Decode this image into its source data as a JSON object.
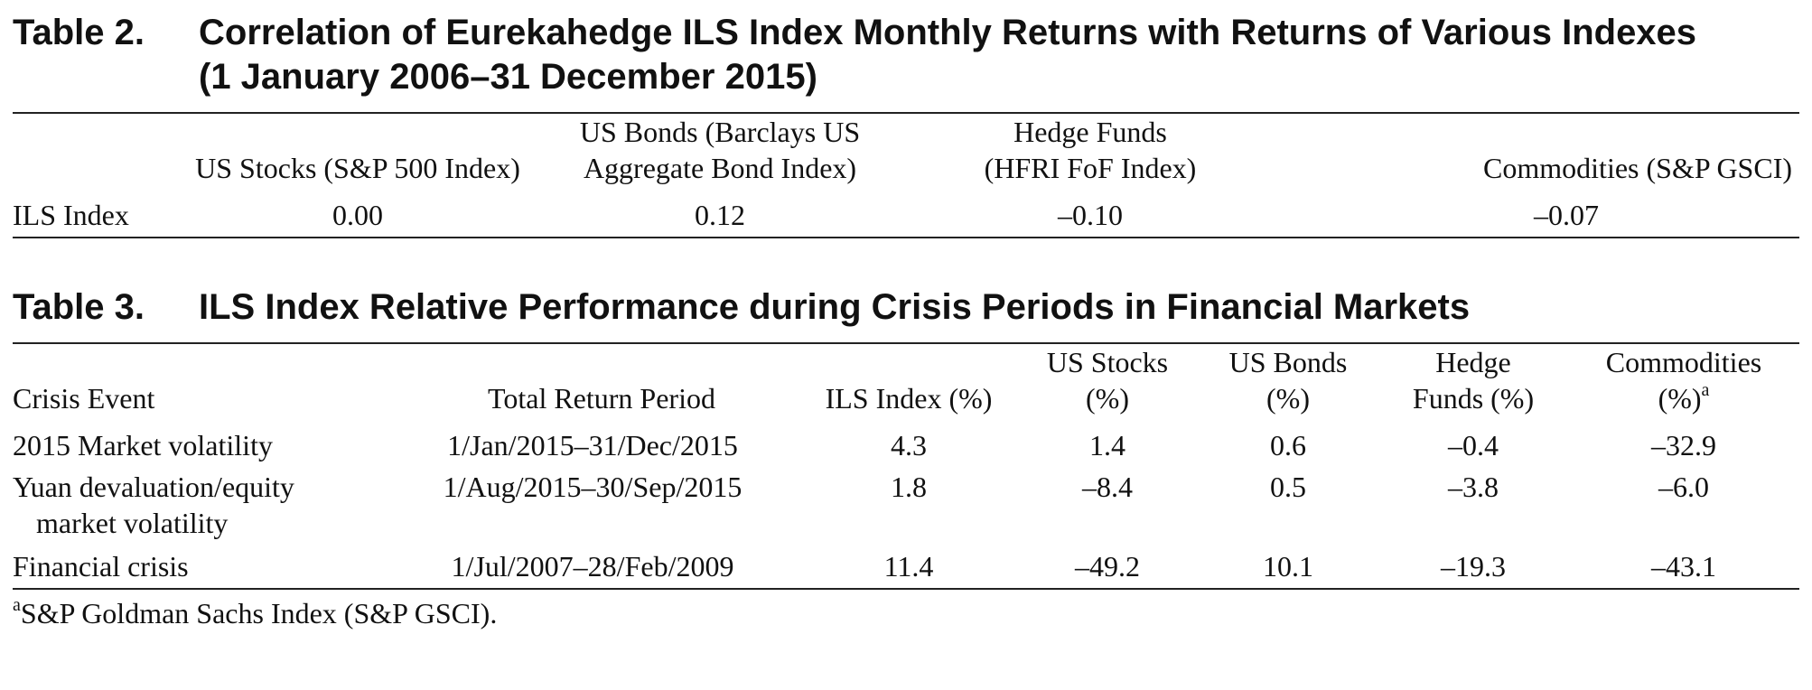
{
  "table2": {
    "number": "Table 2.",
    "title_line1": "Correlation of Eurekahedge ILS Index Monthly Returns with Returns of Various Indexes",
    "title_line2": "(1 January 2006–31 December 2015)",
    "headers": [
      {
        "line1": "",
        "line2": ""
      },
      {
        "line1": "",
        "line2": "US Stocks (S&P 500 Index)"
      },
      {
        "line1": "US Bonds (Barclays US",
        "line2": "Aggregate Bond Index)"
      },
      {
        "line1": "Hedge Funds",
        "line2": "(HFRI FoF Index)"
      },
      {
        "line1": "",
        "line2": "Commodities (S&P GSCI)"
      }
    ],
    "row": {
      "label": "ILS Index",
      "values": [
        "0.00",
        "0.12",
        "–0.10",
        "–0.07"
      ]
    }
  },
  "table3": {
    "number": "Table 3.",
    "title": "ILS Index Relative Performance during Crisis Periods in Financial Markets",
    "headers": [
      {
        "line1": "",
        "line2": "Crisis Event"
      },
      {
        "line1": "",
        "line2": "Total Return Period"
      },
      {
        "line1": "",
        "line2": "ILS Index (%)"
      },
      {
        "line1": "US Stocks",
        "line2": "(%)"
      },
      {
        "line1": "US Bonds",
        "line2": "(%)"
      },
      {
        "line1": "Hedge",
        "line2": "Funds (%)"
      },
      {
        "line1": "Commodities",
        "line2": "(%)",
        "sup": "a"
      }
    ],
    "rows": [
      {
        "event": "2015 Market volatility",
        "event_line2": "",
        "period": "1/Jan/2015–31/Dec/2015",
        "ils": "4.3",
        "stocks": "1.4",
        "bonds": "0.6",
        "hedge": "–0.4",
        "commodities": "–32.9"
      },
      {
        "event": "Yuan devaluation/equity",
        "event_line2": "market volatility",
        "period": "1/Aug/2015–30/Sep/2015",
        "ils": "1.8",
        "stocks": "–8.4",
        "bonds": "0.5",
        "hedge": "–3.8",
        "commodities": "–6.0"
      },
      {
        "event": "Financial crisis",
        "event_line2": "",
        "period": "1/Jul/2007–28/Feb/2009",
        "ils": "11.4",
        "stocks": "–49.2",
        "bonds": "10.1",
        "hedge": "–19.3",
        "commodities": "–43.1"
      }
    ],
    "footnote_marker": "a",
    "footnote_text": "S&P Goldman Sachs Index (S&P GSCI)."
  }
}
